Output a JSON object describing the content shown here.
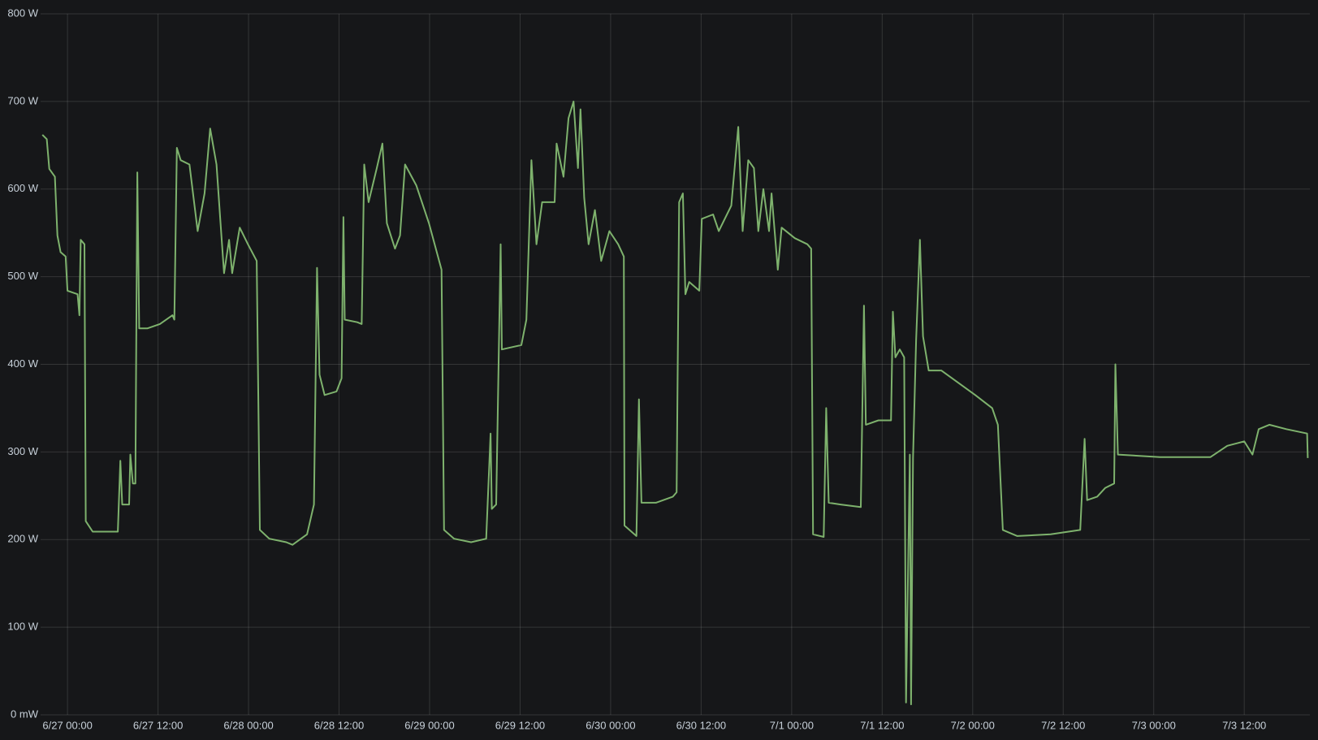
{
  "chart_data": {
    "type": "line",
    "xlim": [
      "6/26 20:26",
      "7/3 20:42"
    ],
    "xticks": [
      "6/27 00:00",
      "6/27 12:00",
      "6/28 00:00",
      "6/28 12:00",
      "6/29 00:00",
      "6/29 12:00",
      "6/30 00:00",
      "6/30 12:00",
      "7/1 00:00",
      "7/1 12:00",
      "7/2 00:00",
      "7/2 12:00",
      "7/3 00:00",
      "7/3 12:00"
    ],
    "ylim": [
      0,
      800
    ],
    "yticks": [
      {
        "value": 0,
        "label": "0 mW"
      },
      {
        "value": 100,
        "label": "100 W"
      },
      {
        "value": 200,
        "label": "200 W"
      },
      {
        "value": 300,
        "label": "300 W"
      },
      {
        "value": 400,
        "label": "400 W"
      },
      {
        "value": 500,
        "label": "500 W"
      },
      {
        "value": 600,
        "label": "600 W"
      },
      {
        "value": 700,
        "label": "700 W"
      },
      {
        "value": 800,
        "label": "800 W"
      }
    ],
    "grid": true,
    "x": [
      "6/26 20:40",
      "6/26 21:15",
      "6/26 21:35",
      "6/26 22:20",
      "6/26 22:40",
      "6/26 23:05",
      "6/26 23:45",
      "6/27 00:00",
      "6/27 01:20",
      "6/27 01:35",
      "6/27 01:45",
      "6/27 02:15",
      "6/27 02:25",
      "6/27 03:20",
      "6/27 06:40",
      "6/27 07:00",
      "6/27 07:15",
      "6/27 08:10",
      "6/27 08:20",
      "6/27 08:40",
      "6/27 09:00",
      "6/27 09:15",
      "6/27 09:30",
      "6/27 10:35",
      "6/27 12:15",
      "6/27 13:55",
      "6/27 14:10",
      "6/27 14:30",
      "6/27 15:00",
      "6/27 16:10",
      "6/27 17:15",
      "6/27 18:10",
      "6/27 18:55",
      "6/27 19:45",
      "6/27 20:15",
      "6/27 20:45",
      "6/27 21:25",
      "6/27 21:50",
      "6/27 22:50",
      "6/27 23:55",
      "6/28 01:05",
      "6/28 01:30",
      "6/28 02:45",
      "6/28 05:00",
      "6/28 05:50",
      "6/28 07:45",
      "6/28 08:40",
      "6/28 09:05",
      "6/28 09:25",
      "6/28 10:05",
      "6/28 11:40",
      "6/28 12:20",
      "6/28 12:35",
      "6/28 12:45",
      "6/28 14:25",
      "6/28 15:00",
      "6/28 15:20",
      "6/28 15:55",
      "6/28 17:00",
      "6/28 17:45",
      "6/28 18:20",
      "6/28 19:25",
      "6/28 20:05",
      "6/28 20:45",
      "6/28 22:15",
      "6/28 23:55",
      "6/29 01:35",
      "6/29 01:55",
      "6/29 03:15",
      "6/29 05:30",
      "6/29 07:30",
      "6/29 08:05",
      "6/29 08:15",
      "6/29 08:50",
      "6/29 09:25",
      "6/29 09:35",
      "6/29 12:10",
      "6/29 12:50",
      "6/29 13:30",
      "6/29 14:10",
      "6/29 14:55",
      "6/29 16:35",
      "6/29 16:50",
      "6/29 17:45",
      "6/29 18:25",
      "6/29 19:05",
      "6/29 19:40",
      "6/29 20:00",
      "6/29 20:30",
      "6/29 21:05",
      "6/29 21:55",
      "6/29 22:45",
      "6/29 23:50",
      "6/30 01:00",
      "6/30 01:45",
      "6/30 01:50",
      "6/30 03:25",
      "6/30 03:45",
      "6/30 04:05",
      "6/30 06:00",
      "6/30 08:15",
      "6/30 08:45",
      "6/30 09:05",
      "6/30 09:35",
      "6/30 09:55",
      "6/30 10:25",
      "6/30 11:45",
      "6/30 12:05",
      "6/30 13:35",
      "6/30 14:20",
      "6/30 16:00",
      "6/30 16:55",
      "6/30 17:30",
      "6/30 18:15",
      "6/30 19:00",
      "6/30 19:35",
      "6/30 20:15",
      "6/30 21:00",
      "6/30 21:20",
      "6/30 22:10",
      "6/30 22:40",
      "7/1 00:25",
      "7/1 02:05",
      "7/1 02:35",
      "7/1 02:50",
      "7/1 04:15",
      "7/1 04:35",
      "7/1 04:55",
      "7/1 06:30",
      "7/1 09:10",
      "7/1 09:35",
      "7/1 09:50",
      "7/1 11:30",
      "7/1 13:10",
      "7/1 13:25",
      "7/1 13:45",
      "7/1 14:20",
      "7/1 14:55",
      "7/1 15:10",
      "7/1 15:40",
      "7/1 15:50",
      "7/1 16:05",
      "7/1 16:30",
      "7/1 17:00",
      "7/1 17:25",
      "7/1 18:10",
      "7/1 19:50",
      "7/1 22:05",
      "7/2 00:20",
      "7/2 02:35",
      "7/2 03:20",
      "7/2 04:00",
      "7/2 05:55",
      "7/2 10:20",
      "7/2 14:15",
      "7/2 14:50",
      "7/2 15:10",
      "7/2 16:30",
      "7/2 17:35",
      "7/2 18:45",
      "7/2 18:55",
      "7/2 19:15",
      "7/3 00:50",
      "7/3 07:30",
      "7/3 09:45",
      "7/3 12:00",
      "7/3 13:05",
      "7/3 13:55",
      "7/3 15:20",
      "7/3 17:35",
      "7/3 20:20",
      "7/3 20:25"
    ],
    "series": [
      {
        "color": "#7eb26d",
        "values": [
          662,
          657,
          623,
          614,
          547,
          528,
          523,
          484,
          480,
          456,
          542,
          537,
          221,
          209,
          209,
          290,
          240,
          240,
          297,
          264,
          264,
          619,
          441,
          441,
          446,
          456,
          451,
          647,
          633,
          628,
          552,
          595,
          669,
          628,
          566,
          504,
          542,
          504,
          556,
          537,
          518,
          211,
          201,
          197,
          194,
          206,
          240,
          510,
          388,
          365,
          369,
          384,
          568,
          451,
          448,
          446,
          628,
          585,
          624,
          652,
          561,
          532,
          547,
          628,
          604,
          561,
          508,
          211,
          201,
          197,
          201,
          321,
          235,
          240,
          537,
          417,
          422,
          451,
          633,
          537,
          585,
          585,
          652,
          614,
          681,
          700,
          624,
          691,
          590,
          537,
          576,
          518,
          552,
          537,
          523,
          216,
          204,
          360,
          242,
          242,
          249,
          254,
          585,
          595,
          480,
          494,
          484,
          566,
          571,
          552,
          581,
          671,
          552,
          633,
          624,
          552,
          600,
          552,
          595,
          508,
          556,
          544,
          537,
          532,
          206,
          203,
          350,
          242,
          240,
          237,
          467,
          331,
          336,
          336,
          460,
          408,
          417,
          408,
          14,
          297,
          12,
          293,
          427,
          542,
          432,
          393,
          393,
          379,
          365,
          350,
          331,
          211,
          204,
          206,
          211,
          315,
          245,
          249,
          259,
          264,
          400,
          297,
          294,
          294,
          307,
          312,
          297,
          326,
          331,
          326,
          321,
          293
        ]
      }
    ]
  }
}
